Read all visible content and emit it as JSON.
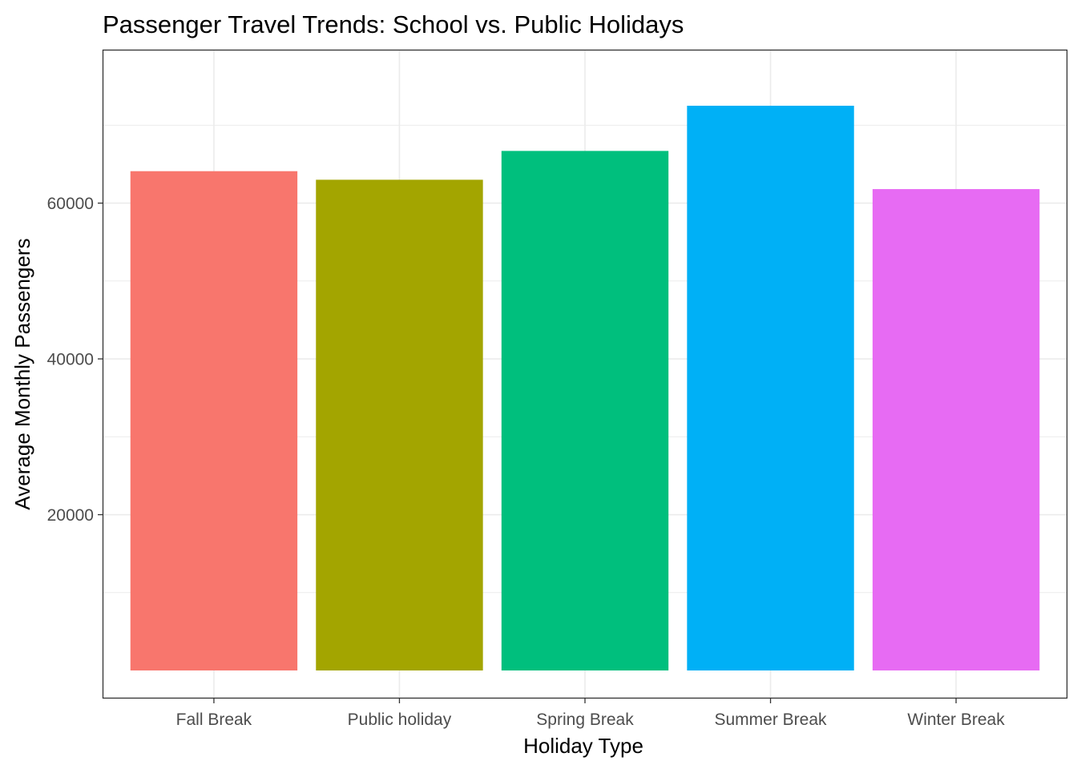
{
  "chart_data": {
    "type": "bar",
    "title": "Passenger Travel Trends: School vs. Public Holidays",
    "xlabel": "Holiday Type",
    "ylabel": "Average Monthly Passengers",
    "categories": [
      "Fall Break",
      "Public holiday",
      "Spring Break",
      "Summer Break",
      "Winter Break"
    ],
    "values": [
      64100,
      63000,
      66700,
      72500,
      61800
    ],
    "colors": [
      "#F8766D",
      "#A3A500",
      "#00BF7D",
      "#00B0F6",
      "#E76BF3"
    ],
    "yticks": [
      20000,
      40000,
      60000
    ],
    "ytick_labels": [
      "20000",
      "40000",
      "60000"
    ],
    "ylim": [
      -3600,
      79700
    ],
    "grid": true,
    "legend": "none"
  }
}
